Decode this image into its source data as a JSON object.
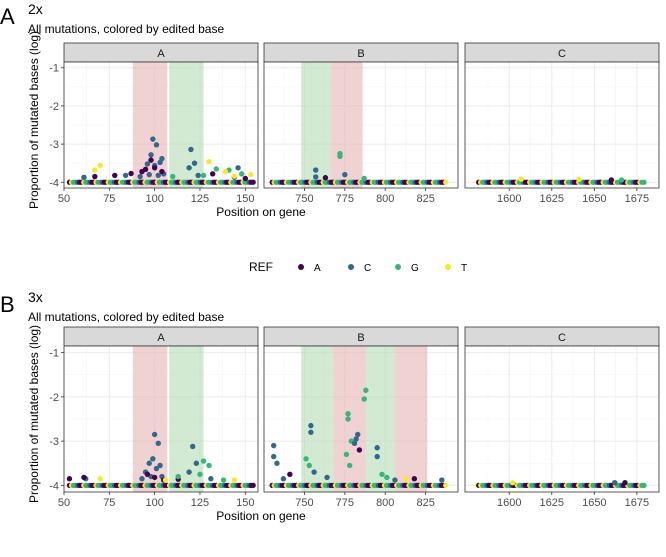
{
  "chart_data": [
    {
      "type": "scatter",
      "panel_letter": "A",
      "title": "2x",
      "subtitle": "All mutations, colored by edited base",
      "ylabel": "Proportion of mutated bases (log)",
      "xlabel": "Position on gene",
      "ylim": [
        -4.15,
        -0.85
      ],
      "y_ticks": [
        -1,
        -2,
        -3,
        -4
      ],
      "legend": {
        "title": "REF",
        "placement": "bottom",
        "entries": [
          "A",
          "C",
          "G",
          "T"
        ]
      },
      "facets": [
        {
          "label": "A",
          "xlim": [
            50,
            157
          ],
          "x_ticks": [
            50,
            75,
            100,
            125,
            150
          ],
          "regions": [
            {
              "x": [
                88,
                107
              ],
              "color": "red"
            },
            {
              "x": [
                108,
                127
              ],
              "color": "green"
            }
          ],
          "baseline": {
            "x": [
              53,
              155
            ],
            "y": -4.0
          },
          "points": [
            [
              99,
              -2.87,
              "C"
            ],
            [
              101,
              -3.02,
              "C"
            ],
            [
              98,
              -3.28,
              "C"
            ],
            [
              104,
              -3.38,
              "C"
            ],
            [
              96,
              -3.52,
              "C"
            ],
            [
              100,
              -3.56,
              "C"
            ],
            [
              103,
              -3.48,
              "C"
            ],
            [
              97,
              -3.8,
              "C"
            ],
            [
              102,
              -3.82,
              "C"
            ],
            [
              105,
              -3.78,
              "C"
            ],
            [
              84,
              -3.82,
              "C"
            ],
            [
              92,
              -3.85,
              "C"
            ],
            [
              61,
              -3.87,
              "C"
            ],
            [
              120,
              -3.14,
              "C"
            ],
            [
              122,
              -3.5,
              "C"
            ],
            [
              119,
              -3.62,
              "C"
            ],
            [
              124,
              -3.82,
              "C"
            ],
            [
              146,
              -3.62,
              "C"
            ],
            [
              98,
              -3.42,
              "A"
            ],
            [
              95,
              -3.66,
              "A"
            ],
            [
              100,
              -3.62,
              "A"
            ],
            [
              104,
              -3.72,
              "A"
            ],
            [
              93,
              -3.72,
              "A"
            ],
            [
              87,
              -3.77,
              "A"
            ],
            [
              78,
              -3.82,
              "A"
            ],
            [
              132,
              -3.78,
              "A"
            ],
            [
              150,
              -3.9,
              "A"
            ],
            [
              144,
              -3.86,
              "A"
            ],
            [
              67,
              -3.85,
              "A"
            ],
            [
              134,
              -3.65,
              "G"
            ],
            [
              141,
              -3.68,
              "G"
            ],
            [
              110,
              -3.85,
              "G"
            ],
            [
              127,
              -3.82,
              "G"
            ],
            [
              148,
              -3.78,
              "G"
            ],
            [
              70,
              -3.56,
              "T"
            ],
            [
              67,
              -3.68,
              "T"
            ],
            [
              130,
              -3.46,
              "T"
            ],
            [
              139,
              -3.72,
              "T"
            ],
            [
              153,
              -3.8,
              "T"
            ],
            [
              144,
              -3.84,
              "T"
            ]
          ]
        },
        {
          "label": "B",
          "xlim": [
            725,
            845
          ],
          "x_ticks": [
            750,
            775,
            800,
            825
          ],
          "regions": [
            {
              "x": [
                748,
                766
              ],
              "color": "green"
            },
            {
              "x": [
                766,
                786
              ],
              "color": "red"
            }
          ],
          "baseline": {
            "x": [
              730,
              838
            ],
            "y": -4.0
          },
          "points": [
            [
              772,
              -3.25,
              "G"
            ],
            [
              772,
              -3.32,
              "G"
            ],
            [
              757,
              -3.68,
              "C"
            ],
            [
              757,
              -3.86,
              "C"
            ],
            [
              775,
              -3.8,
              "C"
            ],
            [
              763,
              -3.88,
              "A"
            ],
            [
              787,
              -3.9,
              "G"
            ]
          ]
        },
        {
          "label": "C",
          "xlim": [
            1574,
            1688
          ],
          "x_ticks": [
            1600,
            1625,
            1650,
            1675
          ],
          "regions": [],
          "baseline": {
            "x": [
              1582,
              1680
            ],
            "y": -4.0
          },
          "points": [
            [
              1607,
              -3.92,
              "T"
            ],
            [
              1641,
              -3.92,
              "T"
            ],
            [
              1660,
              -3.94,
              "A"
            ],
            [
              1666,
              -3.94,
              "G"
            ]
          ]
        }
      ]
    },
    {
      "type": "scatter",
      "panel_letter": "B",
      "title": "3x",
      "subtitle": "All mutations, colored by edited base",
      "ylabel": "Proportion of mutated bases (log)",
      "xlabel": "Position on gene",
      "ylim": [
        -4.15,
        -0.85
      ],
      "y_ticks": [
        -1,
        -2,
        -3,
        -4
      ],
      "legend": {
        "title": "REF",
        "placement": "bottom",
        "entries": [
          "A",
          "C",
          "G",
          "T"
        ]
      },
      "facets": [
        {
          "label": "A",
          "xlim": [
            50,
            157
          ],
          "x_ticks": [
            50,
            75,
            100,
            125,
            150
          ],
          "regions": [
            {
              "x": [
                88,
                107
              ],
              "color": "red"
            },
            {
              "x": [
                108,
                127
              ],
              "color": "green"
            }
          ],
          "baseline": {
            "x": [
              53,
              155
            ],
            "y": -4.0
          },
          "points": [
            [
              100,
              -2.85,
              "C"
            ],
            [
              102,
              -3.05,
              "C"
            ],
            [
              99,
              -3.4,
              "C"
            ],
            [
              97,
              -3.5,
              "C"
            ],
            [
              103,
              -3.55,
              "C"
            ],
            [
              101,
              -3.62,
              "C"
            ],
            [
              95,
              -3.7,
              "C"
            ],
            [
              98,
              -3.8,
              "C"
            ],
            [
              104,
              -3.8,
              "C"
            ],
            [
              93,
              -3.85,
              "C"
            ],
            [
              121,
              -3.12,
              "C"
            ],
            [
              123,
              -3.5,
              "C"
            ],
            [
              119,
              -3.7,
              "C"
            ],
            [
              62,
              -3.85,
              "C"
            ],
            [
              131,
              -3.85,
              "C"
            ],
            [
              96,
              -3.75,
              "A"
            ],
            [
              100,
              -3.82,
              "A"
            ],
            [
              105,
              -3.88,
              "A"
            ],
            [
              53,
              -3.85,
              "A"
            ],
            [
              61,
              -3.82,
              "A"
            ],
            [
              113,
              -3.86,
              "A"
            ],
            [
              127,
              -3.45,
              "G"
            ],
            [
              130,
              -3.55,
              "G"
            ],
            [
              125,
              -3.75,
              "G"
            ],
            [
              113,
              -3.8,
              "G"
            ],
            [
              138,
              -3.88,
              "G"
            ],
            [
              70,
              -3.85,
              "T"
            ],
            [
              106,
              -3.88,
              "T"
            ],
            [
              144,
              -3.88,
              "T"
            ]
          ]
        },
        {
          "label": "B",
          "xlim": [
            725,
            845
          ],
          "x_ticks": [
            750,
            775,
            800,
            825
          ],
          "regions": [
            {
              "x": [
                748,
                768
              ],
              "color": "green"
            },
            {
              "x": [
                768,
                788
              ],
              "color": "red"
            },
            {
              "x": [
                788,
                806
              ],
              "color": "green"
            },
            {
              "x": [
                806,
                826
              ],
              "color": "red"
            }
          ],
          "baseline": {
            "x": [
              730,
              838
            ],
            "y": -4.0
          },
          "points": [
            [
              731,
              -3.1,
              "C"
            ],
            [
              731,
              -3.35,
              "C"
            ],
            [
              733,
              -3.5,
              "C"
            ],
            [
              737,
              -3.85,
              "C"
            ],
            [
              754,
              -2.65,
              "C"
            ],
            [
              754,
              -2.8,
              "C"
            ],
            [
              751,
              -3.4,
              "G"
            ],
            [
              753,
              -3.55,
              "G"
            ],
            [
              756,
              -3.7,
              "C"
            ],
            [
              764,
              -3.82,
              "C"
            ],
            [
              777,
              -2.38,
              "G"
            ],
            [
              777,
              -2.5,
              "G"
            ],
            [
              779,
              -3.0,
              "G"
            ],
            [
              776,
              -3.3,
              "G"
            ],
            [
              778,
              -3.55,
              "G"
            ],
            [
              783,
              -2.85,
              "C"
            ],
            [
              782,
              -2.95,
              "C"
            ],
            [
              781,
              -3.05,
              "C"
            ],
            [
              784,
              -3.2,
              "A"
            ],
            [
              788,
              -1.85,
              "G"
            ],
            [
              787,
              -2.05,
              "G"
            ],
            [
              795,
              -3.15,
              "C"
            ],
            [
              795,
              -3.35,
              "C"
            ],
            [
              798,
              -3.75,
              "G"
            ],
            [
              801,
              -3.82,
              "G"
            ],
            [
              806,
              -3.88,
              "C"
            ],
            [
              813,
              -3.85,
              "T"
            ],
            [
              818,
              -3.85,
              "A"
            ],
            [
              835,
              -3.88,
              "C"
            ],
            [
              741,
              -3.75,
              "A"
            ]
          ]
        },
        {
          "label": "C",
          "xlim": [
            1574,
            1688
          ],
          "x_ticks": [
            1600,
            1625,
            1650,
            1675
          ],
          "regions": [],
          "baseline": {
            "x": [
              1582,
              1680
            ],
            "y": -4.0
          },
          "points": [
            [
              1602,
              -3.94,
              "T"
            ],
            [
              1662,
              -3.94,
              "C"
            ],
            [
              1668,
              -3.94,
              "A"
            ]
          ]
        }
      ]
    }
  ],
  "colors": {
    "A": "#440154",
    "C": "#31688e",
    "G": "#35b779",
    "T": "#fde725",
    "red_region": "#e8b4b4",
    "green_region": "#b4dcb4",
    "strip_fill": "#d9d9d9",
    "grid_major": "#ebebeb",
    "grid_minor": "#f4f4f4",
    "panel_border": "#333333",
    "text": "#000000",
    "tick_text": "#4d4d4d"
  }
}
